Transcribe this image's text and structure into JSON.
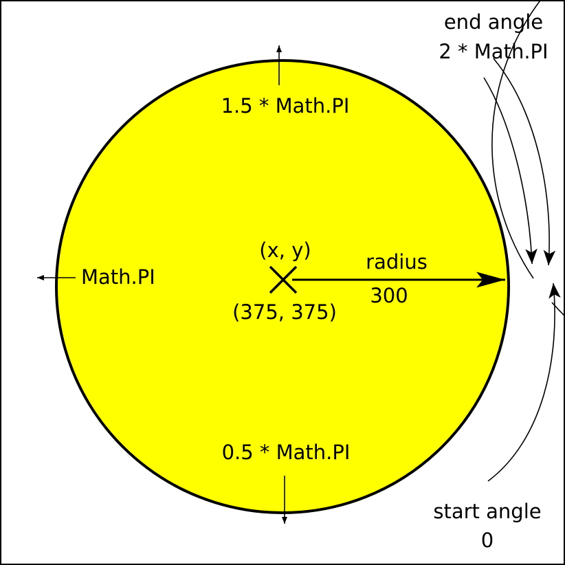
{
  "colors": {
    "circle_fill": "#ffff00",
    "stroke": "#000000",
    "background": "#ffffff"
  },
  "labels": {
    "end_angle_title": "end angle",
    "end_angle_value": "2 * Math.PI",
    "angle_top": "1.5 * Math.PI",
    "angle_left": "Math.PI",
    "angle_bottom": "0.5 * Math.PI",
    "center_name": "(x, y)",
    "center_coords": "(375, 375)",
    "radius_name": "radius",
    "radius_value": "300",
    "start_angle_title": "start angle",
    "start_angle_value": "0"
  },
  "icons": {
    "center_marker": "x-mark-icon"
  }
}
